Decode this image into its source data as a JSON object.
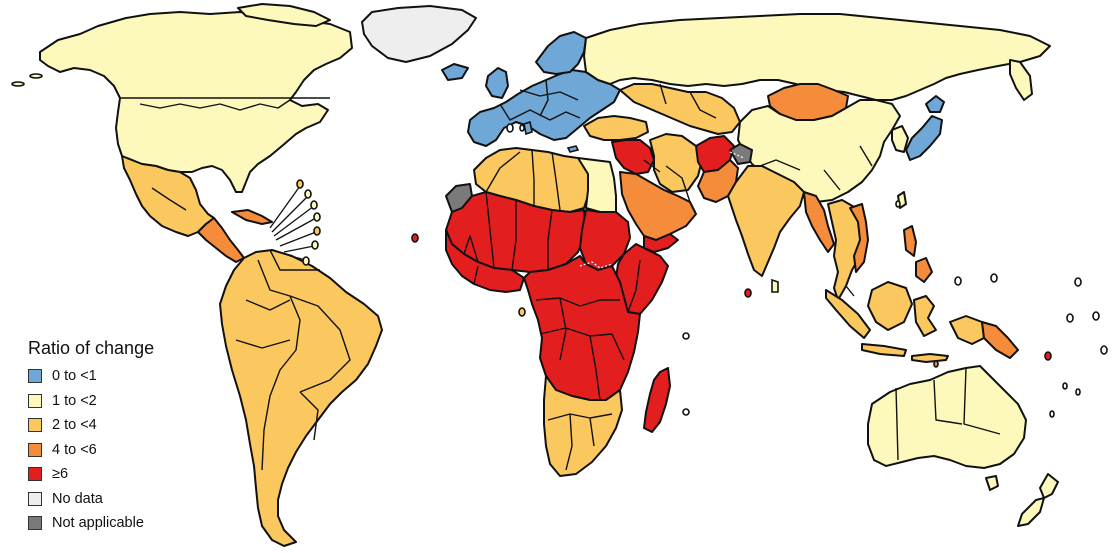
{
  "legend": {
    "title": "Ratio of change",
    "items": [
      {
        "key": "c0",
        "label": "0 to <1",
        "color": "#6fa8d6"
      },
      {
        "key": "c1",
        "label": "1 to <2",
        "color": "#fdf8bb"
      },
      {
        "key": "c2",
        "label": "2 to <4",
        "color": "#fbc860"
      },
      {
        "key": "c3",
        "label": "4 to <6",
        "color": "#f48c3c"
      },
      {
        "key": "c4",
        "label": "≥6",
        "color": "#e31e1e"
      },
      {
        "key": "nd",
        "label": "No data",
        "color": "#eeeeee"
      },
      {
        "key": "na",
        "label": "Not applicable",
        "color": "#7a7a7a"
      }
    ]
  },
  "regions": [
    {
      "name": "North America",
      "category": "1 to <2"
    },
    {
      "name": "Greenland",
      "category": "No data"
    },
    {
      "name": "Mexico",
      "category": "2 to <4"
    },
    {
      "name": "Central America",
      "category": "4 to <6"
    },
    {
      "name": "South America",
      "category": "2 to <4"
    },
    {
      "name": "Uruguay",
      "category": "1 to <2"
    },
    {
      "name": "Western Europe",
      "category": "0 to <1"
    },
    {
      "name": "Russia",
      "category": "1 to <2"
    },
    {
      "name": "Mongolia",
      "category": "4 to <6"
    },
    {
      "name": "China",
      "category": "1 to <2"
    },
    {
      "name": "Japan",
      "category": "0 to <1"
    },
    {
      "name": "Central Asia",
      "category": "2 to <4"
    },
    {
      "name": "Afghanistan",
      "category": "≥6"
    },
    {
      "name": "Pakistan",
      "category": "4 to <6"
    },
    {
      "name": "Kashmir",
      "category": "Not applicable"
    },
    {
      "name": "India",
      "category": "2 to <4"
    },
    {
      "name": "Southeast Asia",
      "category": "2 to <4"
    },
    {
      "name": "Myanmar",
      "category": "4 to <6"
    },
    {
      "name": "Indonesia",
      "category": "2 to <4"
    },
    {
      "name": "Papua New Guinea",
      "category": "4 to <6"
    },
    {
      "name": "Australia",
      "category": "1 to <2"
    },
    {
      "name": "New Zealand",
      "category": "1 to <2"
    },
    {
      "name": "North Africa",
      "category": "2 to <4"
    },
    {
      "name": "Egypt",
      "category": "1 to <2"
    },
    {
      "name": "Western Sahara",
      "category": "Not applicable"
    },
    {
      "name": "Saudi Arabia",
      "category": "4 to <6"
    },
    {
      "name": "Yemen",
      "category": "≥6"
    },
    {
      "name": "Syria",
      "category": "≥6"
    },
    {
      "name": "Sahel",
      "category": "≥6"
    },
    {
      "name": "Sudan",
      "category": "≥6"
    },
    {
      "name": "Central Africa",
      "category": "≥6"
    },
    {
      "name": "Southern Africa",
      "category": "2 to <4"
    },
    {
      "name": "Madagascar",
      "category": "≥6"
    }
  ]
}
